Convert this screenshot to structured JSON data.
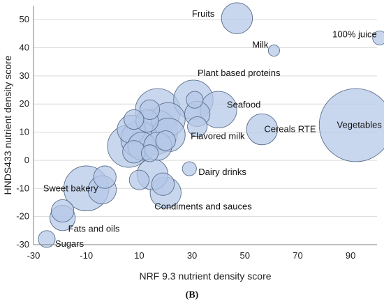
{
  "caption": "(B)",
  "chart_data": {
    "type": "scatter",
    "bubble": true,
    "xlabel": "NRF 9.3 nutrient density score",
    "ylabel": "HNDS433 nutrient density score",
    "xlim": [
      -30,
      100
    ],
    "ylim": [
      -30,
      55
    ],
    "x_ticks": [
      "-30",
      "-10",
      "10",
      "30",
      "50",
      "70",
      "90"
    ],
    "y_ticks": [
      "-30",
      "-20",
      "-10",
      "0",
      "10",
      "20",
      "30",
      "40",
      "50"
    ],
    "grid": true,
    "colors": {
      "fill": "#b4c7e7",
      "stroke": "#5a6f8c",
      "grid": "#d9d9d9",
      "axis": "#7f7f7f"
    },
    "points": [
      {
        "x": 47,
        "y": 50.5,
        "size": 5.5,
        "label": "Fruits"
      },
      {
        "x": 61,
        "y": 39,
        "size": 2,
        "label": "Milk"
      },
      {
        "x": 101,
        "y": 43.5,
        "size": 2.5,
        "label": "100% juice"
      },
      {
        "x": 92,
        "y": 12.5,
        "size": 13,
        "label": "Vegetables"
      },
      {
        "x": 56.5,
        "y": 11,
        "size": 5.5,
        "label": "Cereals RTE"
      },
      {
        "x": 40,
        "y": 18,
        "size": 6.5,
        "label": "Seafood"
      },
      {
        "x": 30.5,
        "y": 21.5,
        "size": 7,
        "label": "Plant based proteins"
      },
      {
        "x": 29,
        "y": -3,
        "size": 2.5,
        "label": "Dairy drinks"
      },
      {
        "x": 20,
        "y": -11.5,
        "size": 5.5,
        "label": "Condiments and sauces"
      },
      {
        "x": -10,
        "y": -10,
        "size": 8,
        "label": "Sweet bakery"
      },
      {
        "x": -19,
        "y": -20.5,
        "size": 4.5,
        "label": "Fats and oils"
      },
      {
        "x": -25,
        "y": -28,
        "size": 3,
        "label": "Sugars"
      },
      {
        "x": -19,
        "y": -18,
        "size": 4
      },
      {
        "x": -3,
        "y": -6,
        "size": 4
      },
      {
        "x": -4,
        "y": -10.5,
        "size": 5
      },
      {
        "x": 10,
        "y": -7,
        "size": 3.5
      },
      {
        "x": 15,
        "y": -5,
        "size": 5.5
      },
      {
        "x": 19,
        "y": -8.5,
        "size": 4
      },
      {
        "x": 32,
        "y": 12,
        "size": 3.5
      },
      {
        "x": 32,
        "y": 16.5,
        "size": 4.5
      },
      {
        "x": 31,
        "y": 21.5,
        "size": 3
      },
      {
        "x": 17,
        "y": 17.5,
        "size": 8
      },
      {
        "x": 21,
        "y": 14.5,
        "size": 6
      },
      {
        "x": 14,
        "y": 18,
        "size": 3.5
      },
      {
        "x": 13,
        "y": 14,
        "size": 4
      },
      {
        "x": 8,
        "y": 14.5,
        "size": 3.5
      },
      {
        "x": 7,
        "y": 11,
        "size": 5
      },
      {
        "x": 10,
        "y": 7.5,
        "size": 6.5
      },
      {
        "x": 16,
        "y": 10,
        "size": 8
      },
      {
        "x": 21,
        "y": 9,
        "size": 6
      },
      {
        "x": 6,
        "y": 5,
        "size": 7.5
      },
      {
        "x": 11,
        "y": 5,
        "size": 5
      },
      {
        "x": 8,
        "y": 3,
        "size": 4
      },
      {
        "x": 17,
        "y": 5,
        "size": 5
      },
      {
        "x": 20,
        "y": 7,
        "size": 3.5
      },
      {
        "x": 14,
        "y": 2.5,
        "size": 3
      }
    ]
  }
}
